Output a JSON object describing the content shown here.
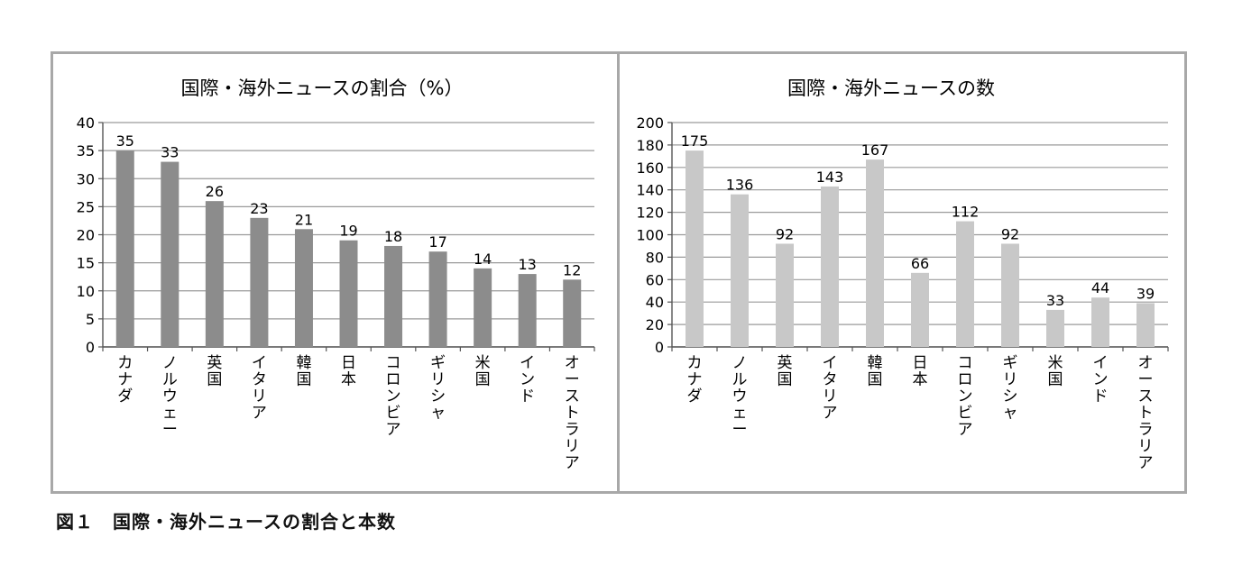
{
  "caption": "図１　国際・海外ニュースの割合と本数",
  "chart_data": [
    {
      "type": "bar",
      "title": "国際・海外ニュースの割合（%）",
      "categories": [
        "カナダ",
        "ノルウェー",
        "英国",
        "イタリア",
        "韓国",
        "日本",
        "コロンビア",
        "ギリシャ",
        "米国",
        "インド",
        "オーストラリア"
      ],
      "values": [
        35,
        33,
        26,
        23,
        21,
        19,
        18,
        17,
        14,
        13,
        12
      ],
      "ylim": [
        0,
        40
      ],
      "yticks": [
        0,
        5,
        10,
        15,
        20,
        25,
        30,
        35,
        40
      ],
      "xlabel": "",
      "ylabel": "",
      "grid": true,
      "bar_color": "#8c8c8c"
    },
    {
      "type": "bar",
      "title": "国際・海外ニュースの数",
      "categories": [
        "カナダ",
        "ノルウェー",
        "英国",
        "イタリア",
        "韓国",
        "日本",
        "コロンビア",
        "ギリシャ",
        "米国",
        "インド",
        "オーストラリア"
      ],
      "values": [
        175,
        136,
        92,
        143,
        167,
        66,
        112,
        92,
        33,
        44,
        39
      ],
      "ylim": [
        0,
        200
      ],
      "yticks": [
        0,
        20,
        40,
        60,
        80,
        100,
        120,
        140,
        160,
        180,
        200
      ],
      "xlabel": "",
      "ylabel": "",
      "grid": true,
      "bar_color": "#c8c8c8"
    }
  ]
}
